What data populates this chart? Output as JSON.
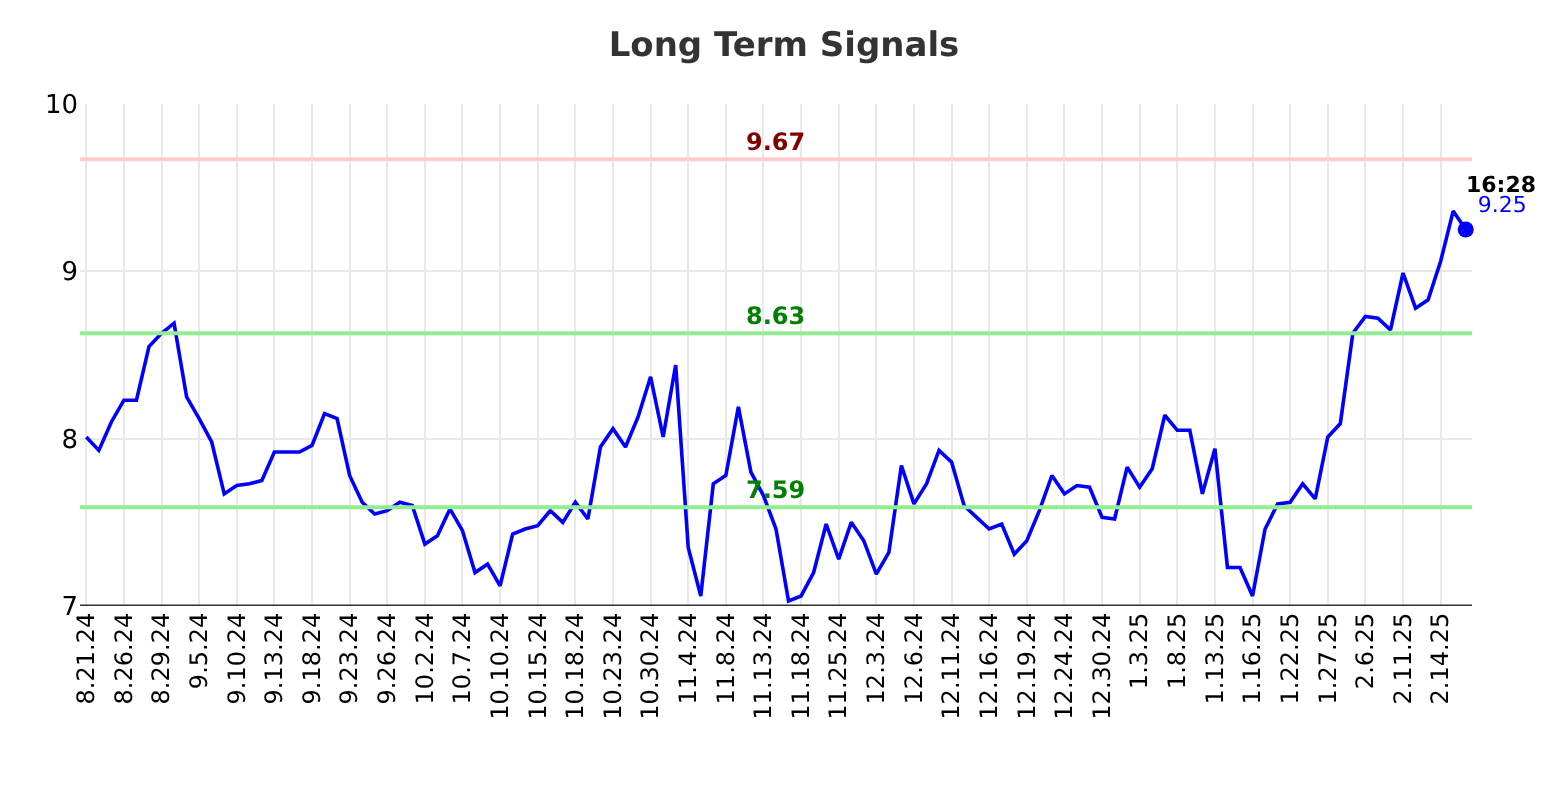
{
  "chart_data": {
    "type": "line",
    "title": "Long Term Signals",
    "categories": [
      "8.21.24",
      null,
      null,
      "8.26.24",
      null,
      null,
      "8.29.24",
      null,
      null,
      "9.5.24",
      null,
      null,
      "9.10.24",
      null,
      null,
      "9.13.24",
      null,
      null,
      "9.18.24",
      null,
      null,
      "9.23.24",
      null,
      null,
      "9.26.24",
      null,
      null,
      "10.2.24",
      null,
      null,
      "10.7.24",
      null,
      null,
      "10.10.24",
      null,
      null,
      "10.15.24",
      null,
      null,
      "10.18.24",
      null,
      null,
      "10.23.24",
      null,
      null,
      "10.30.24",
      null,
      null,
      "11.4.24",
      null,
      null,
      "11.8.24",
      null,
      null,
      "11.13.24",
      null,
      null,
      "11.18.24",
      null,
      null,
      "11.25.24",
      null,
      null,
      "12.3.24",
      null,
      null,
      "12.6.24",
      null,
      null,
      "12.11.24",
      null,
      null,
      "12.16.24",
      null,
      null,
      "12.19.24",
      null,
      null,
      "12.24.24",
      null,
      null,
      "12.30.24",
      null,
      null,
      "1.3.25",
      null,
      null,
      "1.8.25",
      null,
      null,
      "1.13.25",
      null,
      null,
      "1.16.25",
      null,
      null,
      "1.22.25",
      null,
      null,
      "1.27.25",
      null,
      null,
      "2.6.25",
      null,
      null,
      "2.11.25",
      null,
      null,
      "2.14.25",
      null,
      null
    ],
    "series": [
      {
        "color": "#0000ff",
        "values": [
          8.01,
          7.93,
          8.1,
          8.23,
          8.23,
          8.55,
          8.63,
          8.69,
          8.25,
          8.12,
          7.98,
          7.67,
          7.72,
          7.73,
          7.75,
          7.92,
          7.92,
          7.92,
          7.96,
          8.15,
          8.12,
          7.78,
          7.62,
          7.55,
          7.57,
          7.62,
          7.6,
          7.37,
          7.42,
          7.58,
          7.45,
          7.2,
          7.25,
          7.12,
          7.43,
          7.46,
          7.48,
          7.57,
          7.5,
          7.62,
          7.52,
          7.95,
          8.06,
          7.95,
          8.13,
          8.37,
          8.01,
          8.44,
          7.35,
          7.06,
          7.73,
          7.78,
          8.19,
          7.8,
          7.66,
          7.46,
          7.03,
          7.06,
          7.2,
          7.49,
          7.28,
          7.5,
          7.39,
          7.19,
          7.32,
          7.84,
          7.61,
          7.73,
          7.93,
          7.86,
          7.6,
          7.53,
          7.46,
          7.49,
          7.31,
          7.39,
          7.57,
          7.78,
          7.67,
          7.72,
          7.71,
          7.53,
          7.52,
          7.83,
          7.71,
          7.82,
          8.14,
          8.05,
          8.05,
          7.67,
          7.94,
          7.23,
          7.23,
          7.06,
          7.46,
          7.61,
          7.62,
          7.73,
          7.64,
          8.01,
          8.09,
          8.63,
          8.73,
          8.72,
          8.65,
          8.99,
          8.78,
          8.83,
          9.06,
          9.36,
          9.25
        ],
        "value_labels": [
          null,
          null,
          null,
          null,
          null,
          null,
          null,
          null,
          null,
          null,
          null,
          null,
          null,
          null,
          null,
          null,
          null,
          null,
          null,
          null,
          null,
          null,
          null,
          null,
          null,
          null,
          null,
          null,
          null,
          null,
          null,
          null,
          null,
          null,
          null,
          null,
          null,
          null,
          null,
          null,
          null,
          null,
          null,
          null,
          null,
          null,
          null,
          null,
          null,
          null,
          null,
          null,
          null,
          null,
          null,
          null,
          null,
          null,
          null,
          null,
          null,
          null,
          null,
          null,
          null,
          null,
          null,
          null,
          null,
          null,
          null,
          null,
          null,
          null,
          null,
          null,
          null,
          null,
          null,
          null,
          null,
          null,
          null,
          null,
          null,
          null,
          null,
          null,
          null,
          null,
          null,
          null,
          null,
          null,
          null,
          null,
          null,
          null,
          null,
          null,
          null,
          null,
          null,
          null,
          null,
          null,
          null,
          null,
          null,
          null,
          "9.25"
        ]
      }
    ],
    "ylim": [
      7,
      10
    ],
    "yticks": [
      7,
      8,
      9,
      10
    ],
    "grid": true,
    "line_style": "solid",
    "ref_lines": [
      {
        "axis": "y",
        "value": 9.67,
        "label": "9.67",
        "color": "#ffcccc"
      },
      {
        "axis": "y",
        "value": 8.63,
        "label": "8.63",
        "color": "#90ee90"
      },
      {
        "axis": "y",
        "value": 7.59,
        "label": "7.59",
        "color": "#90ee90"
      }
    ],
    "annotations": [
      "16:28"
    ]
  }
}
